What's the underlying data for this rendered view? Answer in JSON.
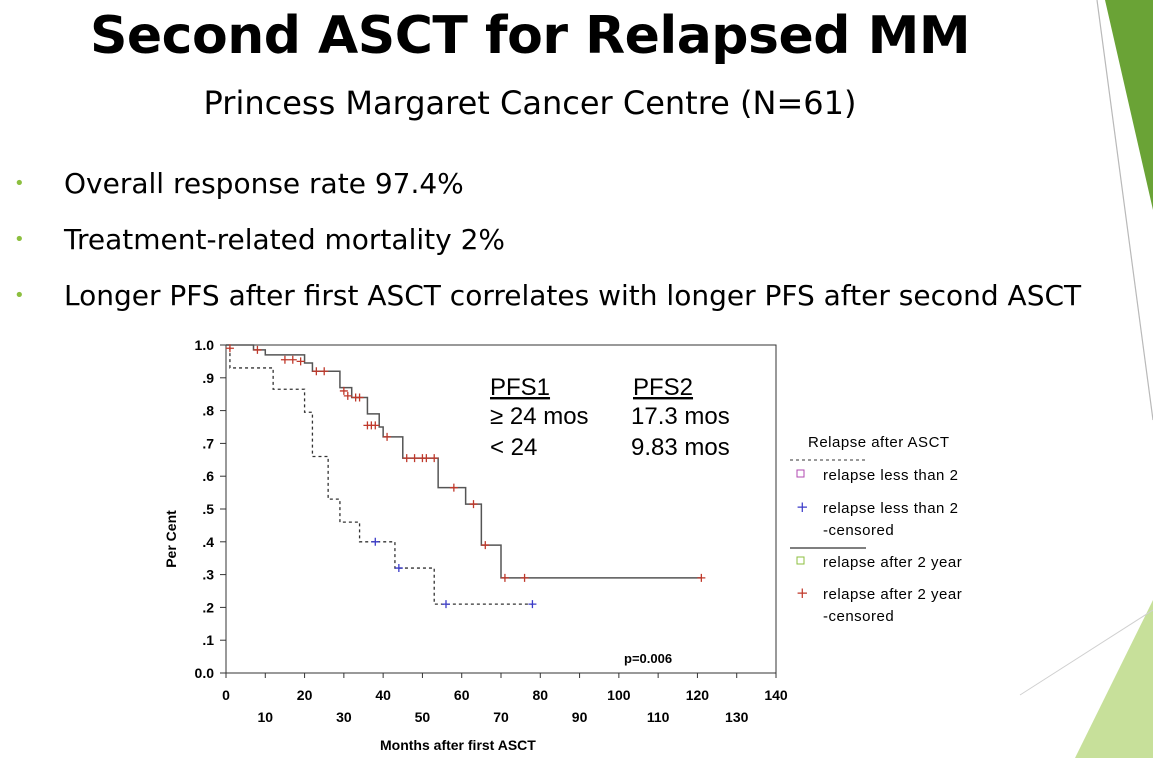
{
  "slide": {
    "title": "Second ASCT for Relapsed MM",
    "subtitle": "Princess Margaret Cancer Centre (N=61)",
    "bullets": [
      "Overall response rate 97.4%",
      "Treatment-related mortality 2%",
      "Longer PFS after first ASCT correlates with longer PFS after second ASCT"
    ],
    "colors": {
      "bullet": "#8cbf3f",
      "accent_green": "#6aa336",
      "light_green": "#c7e09a"
    }
  },
  "chart_data": {
    "type": "line",
    "subtype": "kaplan-meier step curve",
    "xlabel": "Months after first ASCT",
    "ylabel": "Per Cent",
    "xlim": [
      0,
      140
    ],
    "ylim": [
      0,
      1.0
    ],
    "x_ticks_row1": [
      "0",
      "20",
      "40",
      "60",
      "80",
      "100",
      "120",
      "140"
    ],
    "x_ticks_row2": [
      "10",
      "30",
      "50",
      "70",
      "90",
      "110",
      "130"
    ],
    "y_ticks": [
      "0.0",
      ".1",
      ".2",
      ".3",
      ".4",
      ".5",
      ".6",
      ".7",
      ".8",
      ".9",
      "1.0"
    ],
    "grid": false,
    "annotation_table": {
      "headers": [
        "PFS1",
        "PFS2"
      ],
      "rows": [
        [
          "≥ 24 mos",
          "17.3 mos"
        ],
        [
          "< 24",
          "9.83 mos"
        ]
      ]
    },
    "p_value": "p=0.006",
    "legend": {
      "title": "Relapse after ASCT",
      "position": "right",
      "entries": [
        "relapse less than 2",
        "relapse less than 2",
        "-censored",
        "relapse after 2 year",
        "relapse after 2 year",
        "-censored"
      ]
    },
    "series": [
      {
        "name": "relapse less than 2",
        "style": "dotted",
        "color": "#333333",
        "x": [
          0,
          1,
          11,
          12,
          19,
          20,
          21,
          22,
          25,
          26,
          28,
          29,
          33,
          34,
          42,
          43,
          52,
          53,
          78
        ],
        "y": [
          1.0,
          0.93,
          0.93,
          0.865,
          0.865,
          0.795,
          0.795,
          0.66,
          0.66,
          0.53,
          0.53,
          0.46,
          0.46,
          0.4,
          0.4,
          0.32,
          0.32,
          0.21,
          0.21
        ],
        "censored": [
          [
            38,
            0.4
          ],
          [
            44,
            0.32
          ],
          [
            56,
            0.21
          ],
          [
            78,
            0.21
          ]
        ],
        "censor_color": "#3b3bc8"
      },
      {
        "name": "relapse after 2 year",
        "style": "solid",
        "color": "#555555",
        "x": [
          0,
          7,
          10,
          18,
          20,
          22,
          28,
          29,
          32,
          35,
          36,
          39,
          40,
          44,
          45,
          53,
          54,
          60,
          61,
          64,
          65,
          69,
          70,
          121
        ],
        "y": [
          1.0,
          0.985,
          0.97,
          0.97,
          0.945,
          0.92,
          0.92,
          0.87,
          0.84,
          0.84,
          0.79,
          0.75,
          0.72,
          0.72,
          0.655,
          0.655,
          0.565,
          0.565,
          0.515,
          0.515,
          0.39,
          0.39,
          0.29,
          0.29
        ],
        "censored": [
          [
            1,
            0.99
          ],
          [
            8,
            0.985
          ],
          [
            15,
            0.955
          ],
          [
            17,
            0.955
          ],
          [
            19,
            0.95
          ],
          [
            23,
            0.92
          ],
          [
            25,
            0.92
          ],
          [
            30,
            0.86
          ],
          [
            31,
            0.845
          ],
          [
            33,
            0.84
          ],
          [
            34,
            0.84
          ],
          [
            36,
            0.755
          ],
          [
            37,
            0.755
          ],
          [
            38,
            0.755
          ],
          [
            41,
            0.72
          ],
          [
            46,
            0.655
          ],
          [
            48,
            0.655
          ],
          [
            50,
            0.655
          ],
          [
            51,
            0.655
          ],
          [
            53,
            0.655
          ],
          [
            58,
            0.565
          ],
          [
            63,
            0.515
          ],
          [
            66,
            0.39
          ],
          [
            71,
            0.29
          ],
          [
            76,
            0.29
          ],
          [
            121,
            0.29
          ]
        ],
        "censor_color": "#c0392b"
      }
    ]
  }
}
